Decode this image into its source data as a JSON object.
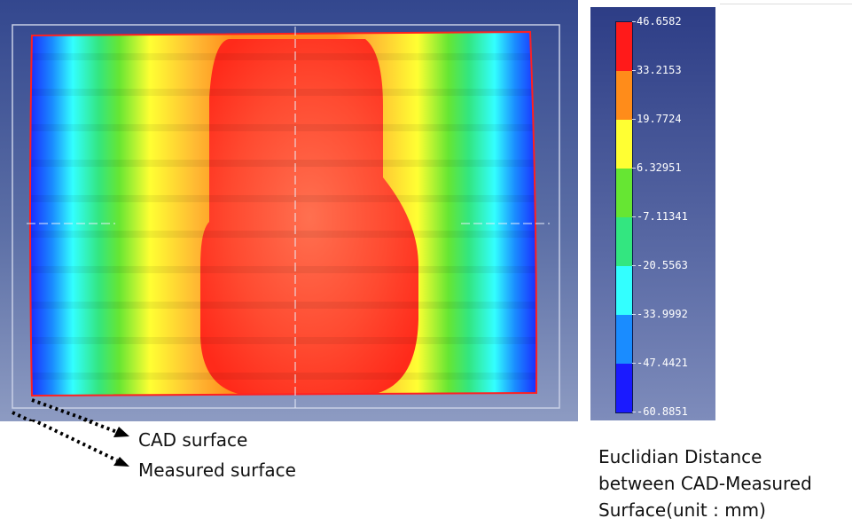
{
  "colormap": {
    "title": "",
    "bands": [
      {
        "color": "#ff1a1a"
      },
      {
        "color": "#ff8c1a"
      },
      {
        "color": "#ffff33"
      },
      {
        "color": "#66e633"
      },
      {
        "color": "#33e680"
      },
      {
        "color": "#33ffff"
      },
      {
        "color": "#1a8cff"
      },
      {
        "color": "#1a1aff"
      }
    ],
    "ticks": [
      "46.6582",
      "33.2153",
      "19.7724",
      "6.32951",
      "-7.11341",
      "-20.5563",
      "-33.9992",
      "-47.4421",
      "-60.8851"
    ]
  },
  "annotations": {
    "cad_label": "CAD surface",
    "measured_label": "Measured surface"
  },
  "legend_caption": {
    "line1": "Euclidian Distance",
    "line2": "between CAD-Measured",
    "line3": "Surface(unit : mm)"
  }
}
